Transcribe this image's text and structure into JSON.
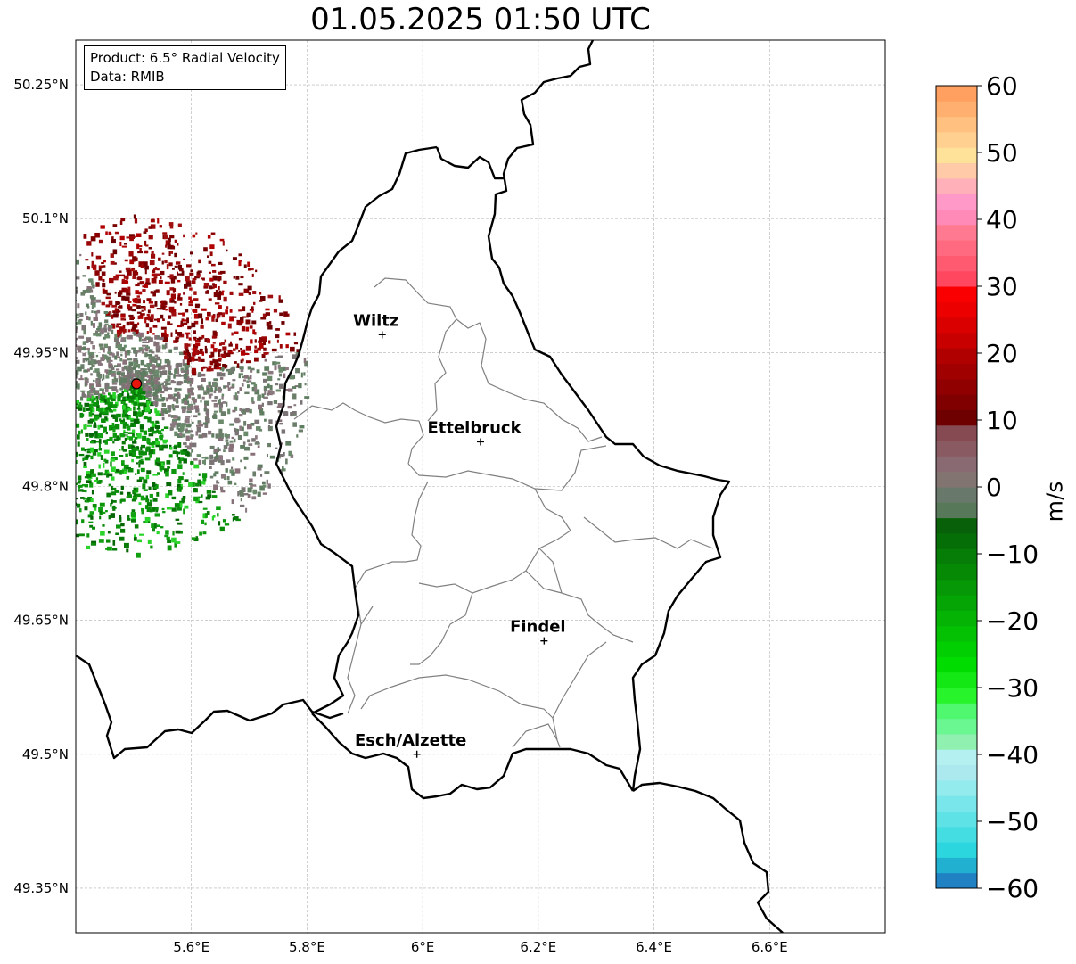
{
  "title": "01.05.2025 01:50 UTC",
  "info": {
    "product": "Product: 6.5° Radial Velocity",
    "data": "Data: RMIB"
  },
  "axes": {
    "lon_ticks": [
      {
        "value": 5.6,
        "label": "5.6°E"
      },
      {
        "value": 5.8,
        "label": "5.8°E"
      },
      {
        "value": 6.0,
        "label": "6°E"
      },
      {
        "value": 6.2,
        "label": "6.2°E"
      },
      {
        "value": 6.4,
        "label": "6.4°E"
      },
      {
        "value": 6.6,
        "label": "6.6°E"
      }
    ],
    "lat_ticks": [
      {
        "value": 50.25,
        "label": "50.25°N"
      },
      {
        "value": 50.1,
        "label": "50.1°N"
      },
      {
        "value": 49.95,
        "label": "49.95°N"
      },
      {
        "value": 49.8,
        "label": "49.8°N"
      },
      {
        "value": 49.65,
        "label": "49.65°N"
      },
      {
        "value": 49.5,
        "label": "49.5°N"
      },
      {
        "value": 49.35,
        "label": "49.35°N"
      }
    ],
    "lon_range": [
      5.4,
      6.8
    ],
    "lat_range": [
      49.3,
      50.3
    ],
    "grid": true
  },
  "cities": [
    {
      "name": "Wiltz",
      "lon": 5.93,
      "lat": 49.97
    },
    {
      "name": "Ettelbruck",
      "lon": 6.1,
      "lat": 49.85
    },
    {
      "name": "Findel",
      "lon": 6.21,
      "lat": 49.627
    },
    {
      "name": "Esch/Alzette",
      "lon": 5.99,
      "lat": 49.5
    }
  ],
  "radar": {
    "lon": 5.505,
    "lat": 49.915,
    "marker_color": "#e8150c"
  },
  "colorbar": {
    "label": "m/s",
    "min": -60,
    "max": 60,
    "ticks": [
      {
        "value": 60,
        "label": "60"
      },
      {
        "value": 50,
        "label": "50"
      },
      {
        "value": 40,
        "label": "40"
      },
      {
        "value": 30,
        "label": "30"
      },
      {
        "value": 20,
        "label": "20"
      },
      {
        "value": 10,
        "label": "10"
      },
      {
        "value": 0,
        "label": "0"
      },
      {
        "value": -10,
        "label": "−10"
      },
      {
        "value": -20,
        "label": "−20"
      },
      {
        "value": -30,
        "label": "−30"
      },
      {
        "value": -40,
        "label": "−40"
      },
      {
        "value": -50,
        "label": "−50"
      },
      {
        "value": -60,
        "label": "−60"
      }
    ],
    "colors": [
      "#2081c3",
      "#21b0d0",
      "#2bd6de",
      "#44dde2",
      "#5fe2e6",
      "#78e6ea",
      "#93ebed",
      "#ace9ef",
      "#b5f0f0",
      "#8ff0b0",
      "#6af690",
      "#50f870",
      "#28f42c",
      "#14e814",
      "#00dc00",
      "#02cf02",
      "#04c104",
      "#05b305",
      "#06a506",
      "#069806",
      "#068a06",
      "#067d06",
      "#056e06",
      "#086108",
      "#58785a",
      "#68786a",
      "#827470",
      "#8a6a72",
      "#8a5a62",
      "#864a52",
      "#6e0000",
      "#800000",
      "#900000",
      "#a00000",
      "#b00000",
      "#c80000",
      "#da0000",
      "#ec0000",
      "#fa0000",
      "#ff4860",
      "#ff5a70",
      "#ff6a80",
      "#ff7a90",
      "#ff8ab8",
      "#ff9ac8",
      "#ffb0b8",
      "#ffcaa8",
      "#ffe29a",
      "#ffd090",
      "#ffc080",
      "#ffb070",
      "#ffa060"
    ]
  }
}
